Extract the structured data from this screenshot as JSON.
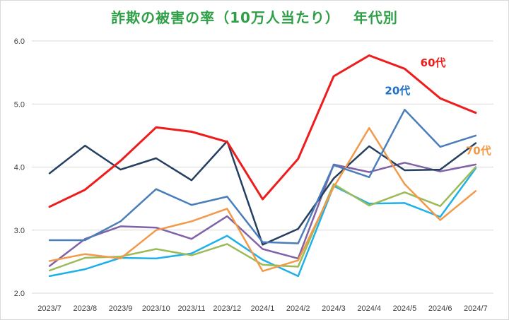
{
  "chart_data": {
    "type": "line",
    "title": "詐欺の被害の率（10万人当たり）　 年代別",
    "categories": [
      "2023/7",
      "2023/8",
      "2023/9",
      "2023/10",
      "2023/11",
      "2023/12",
      "2024/1",
      "2024/2",
      "2024/3",
      "2024/4",
      "2024/5",
      "2024/6",
      "2024/7"
    ],
    "ylim": [
      2.0,
      6.0
    ],
    "yticks": [
      "2.0",
      "3.0",
      "4.0",
      "5.0",
      "6.0"
    ],
    "grid": true,
    "series": [
      {
        "name": "60代",
        "color": "#ee1c1c",
        "label_at": 11,
        "label_color": "#ee1c1c",
        "values": [
          3.37,
          3.64,
          4.1,
          4.63,
          4.56,
          4.4,
          3.49,
          4.13,
          5.44,
          5.77,
          5.56,
          5.09,
          4.86
        ]
      },
      {
        "name": "20代",
        "color": "#4a7ebb",
        "label_at": 10,
        "label_color": "#1f6fc5",
        "values": [
          2.84,
          2.84,
          3.14,
          3.65,
          3.4,
          3.53,
          2.81,
          2.79,
          4.03,
          3.84,
          4.91,
          4.32,
          4.5
        ]
      },
      {
        "name": "70代",
        "color": "#f29a4a",
        "label_at": 12,
        "label_color": "#f29a4a",
        "values": [
          2.51,
          2.62,
          2.55,
          3.0,
          3.14,
          3.34,
          2.35,
          2.52,
          3.68,
          4.62,
          3.73,
          3.16,
          3.62
        ]
      },
      {
        "name": "",
        "color": "#243f60",
        "values": [
          3.9,
          4.34,
          3.96,
          4.14,
          3.79,
          4.41,
          2.77,
          3.02,
          3.82,
          4.33,
          3.95,
          3.96,
          4.38
        ]
      },
      {
        "name": "",
        "color": "#7f62a8",
        "values": [
          2.43,
          2.86,
          3.06,
          3.04,
          2.86,
          3.22,
          2.7,
          2.55,
          4.04,
          3.92,
          4.07,
          3.93,
          4.04
        ]
      },
      {
        "name": "",
        "color": "#9bbb59",
        "values": [
          2.36,
          2.56,
          2.58,
          2.7,
          2.6,
          2.78,
          2.45,
          2.42,
          3.73,
          3.39,
          3.6,
          3.38,
          4.0
        ]
      },
      {
        "name": "",
        "color": "#1fb0e8",
        "values": [
          2.27,
          2.38,
          2.56,
          2.55,
          2.63,
          2.91,
          2.53,
          2.27,
          3.7,
          3.42,
          3.43,
          3.21,
          3.98
        ]
      }
    ]
  }
}
